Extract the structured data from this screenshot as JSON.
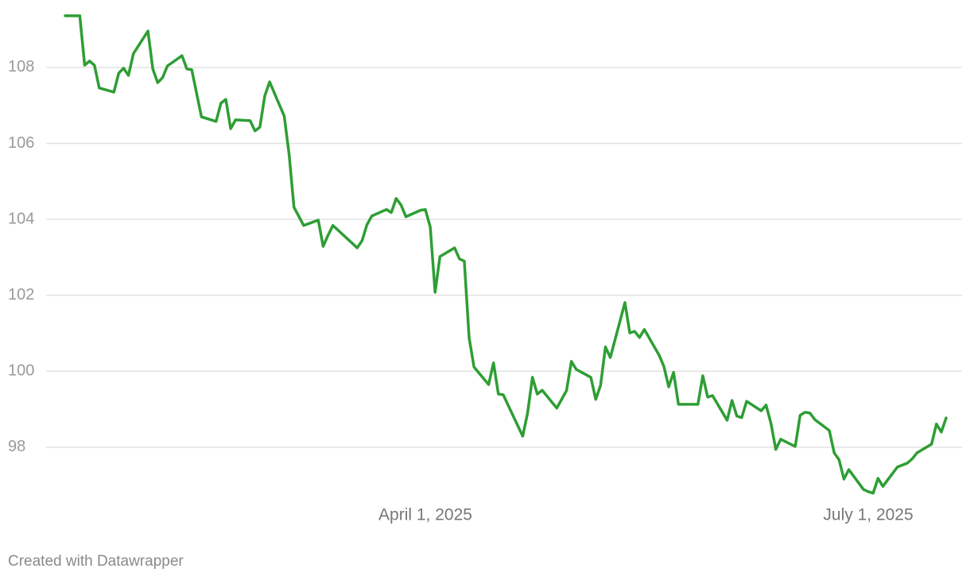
{
  "chart_data": {
    "type": "line",
    "x": [
      "2025-01-17",
      "2025-01-20",
      "2025-01-21",
      "2025-01-22",
      "2025-01-23",
      "2025-01-24",
      "2025-01-27",
      "2025-01-28",
      "2025-01-29",
      "2025-01-30",
      "2025-01-31",
      "2025-02-03",
      "2025-02-04",
      "2025-02-05",
      "2025-02-06",
      "2025-02-07",
      "2025-02-10",
      "2025-02-11",
      "2025-02-12",
      "2025-02-14",
      "2025-02-17",
      "2025-02-18",
      "2025-02-19",
      "2025-02-20",
      "2025-02-21",
      "2025-02-24",
      "2025-02-25",
      "2025-02-26",
      "2025-02-27",
      "2025-02-28",
      "2025-03-03",
      "2025-03-04",
      "2025-03-05",
      "2025-03-07",
      "2025-03-10",
      "2025-03-11",
      "2025-03-12",
      "2025-03-13",
      "2025-03-18",
      "2025-03-19",
      "2025-03-20",
      "2025-03-21",
      "2025-03-24",
      "2025-03-25",
      "2025-03-26",
      "2025-03-27",
      "2025-03-28",
      "2025-03-31",
      "2025-04-01",
      "2025-04-02",
      "2025-04-03",
      "2025-04-04",
      "2025-04-07",
      "2025-04-08",
      "2025-04-09",
      "2025-04-10",
      "2025-04-11",
      "2025-04-14",
      "2025-04-15",
      "2025-04-16",
      "2025-04-17",
      "2025-04-21",
      "2025-04-22",
      "2025-04-23",
      "2025-04-24",
      "2025-04-25",
      "2025-04-28",
      "2025-04-30",
      "2025-05-01",
      "2025-05-02",
      "2025-05-05",
      "2025-05-06",
      "2025-05-07",
      "2025-05-08",
      "2025-05-09",
      "2025-05-12",
      "2025-05-13",
      "2025-05-14",
      "2025-05-15",
      "2025-05-16",
      "2025-05-19",
      "2025-05-20",
      "2025-05-21",
      "2025-05-22",
      "2025-05-23",
      "2025-05-27",
      "2025-05-28",
      "2025-05-29",
      "2025-05-30",
      "2025-06-02",
      "2025-06-03",
      "2025-06-04",
      "2025-06-05",
      "2025-06-06",
      "2025-06-09",
      "2025-06-10",
      "2025-06-11",
      "2025-06-12",
      "2025-06-13",
      "2025-06-16",
      "2025-06-17",
      "2025-06-18",
      "2025-06-19",
      "2025-06-20",
      "2025-06-23",
      "2025-06-24",
      "2025-06-25",
      "2025-06-26",
      "2025-06-27",
      "2025-06-30",
      "2025-07-01",
      "2025-07-02",
      "2025-07-03",
      "2025-07-04",
      "2025-07-07",
      "2025-07-09",
      "2025-07-10",
      "2025-07-11",
      "2025-07-14",
      "2025-07-15",
      "2025-07-16",
      "2025-07-17"
    ],
    "values": [
      109.36,
      109.36,
      108.06,
      108.17,
      108.06,
      107.46,
      107.35,
      107.85,
      107.98,
      107.79,
      108.36,
      108.96,
      107.96,
      107.6,
      107.73,
      108.04,
      108.31,
      107.96,
      107.94,
      106.7,
      106.58,
      107.06,
      107.16,
      106.39,
      106.62,
      106.6,
      106.33,
      106.43,
      107.25,
      107.62,
      106.72,
      105.72,
      104.32,
      103.84,
      103.98,
      103.29,
      103.58,
      103.84,
      103.25,
      103.44,
      103.86,
      104.09,
      104.26,
      104.18,
      104.55,
      104.38,
      104.07,
      104.24,
      104.26,
      103.8,
      102.08,
      103.02,
      103.25,
      102.96,
      102.9,
      100.87,
      100.11,
      99.65,
      100.22,
      99.4,
      99.38,
      98.29,
      98.9,
      99.84,
      99.4,
      99.5,
      99.03,
      99.49,
      100.26,
      100.05,
      99.84,
      99.26,
      99.63,
      100.64,
      100.36,
      101.81,
      101.01,
      101.05,
      100.89,
      101.1,
      100.43,
      100.13,
      99.59,
      99.97,
      99.13,
      99.13,
      99.88,
      99.32,
      99.36,
      98.71,
      99.23,
      98.82,
      98.78,
      99.21,
      98.96,
      99.11,
      98.63,
      97.94,
      98.21,
      98.02,
      98.84,
      98.92,
      98.9,
      98.73,
      98.44,
      97.85,
      97.67,
      97.16,
      97.41,
      96.89,
      96.83,
      96.79,
      97.18,
      96.97,
      97.48,
      97.58,
      97.69,
      97.85,
      98.08,
      98.61,
      98.4,
      98.77
    ],
    "color": "#2e9e34",
    "xlim": [
      "2025-01-17",
      "2025-07-17"
    ],
    "xticks": [
      {
        "value": "2025-04-01",
        "label": "April 1, 2025"
      },
      {
        "value": "2025-07-01",
        "label": "July 1, 2025"
      }
    ],
    "ylim": [
      96.7,
      109.4
    ],
    "yticks": [
      98,
      100,
      102,
      104,
      106,
      108
    ],
    "grid": true,
    "footer": "Created with Datawrapper"
  }
}
